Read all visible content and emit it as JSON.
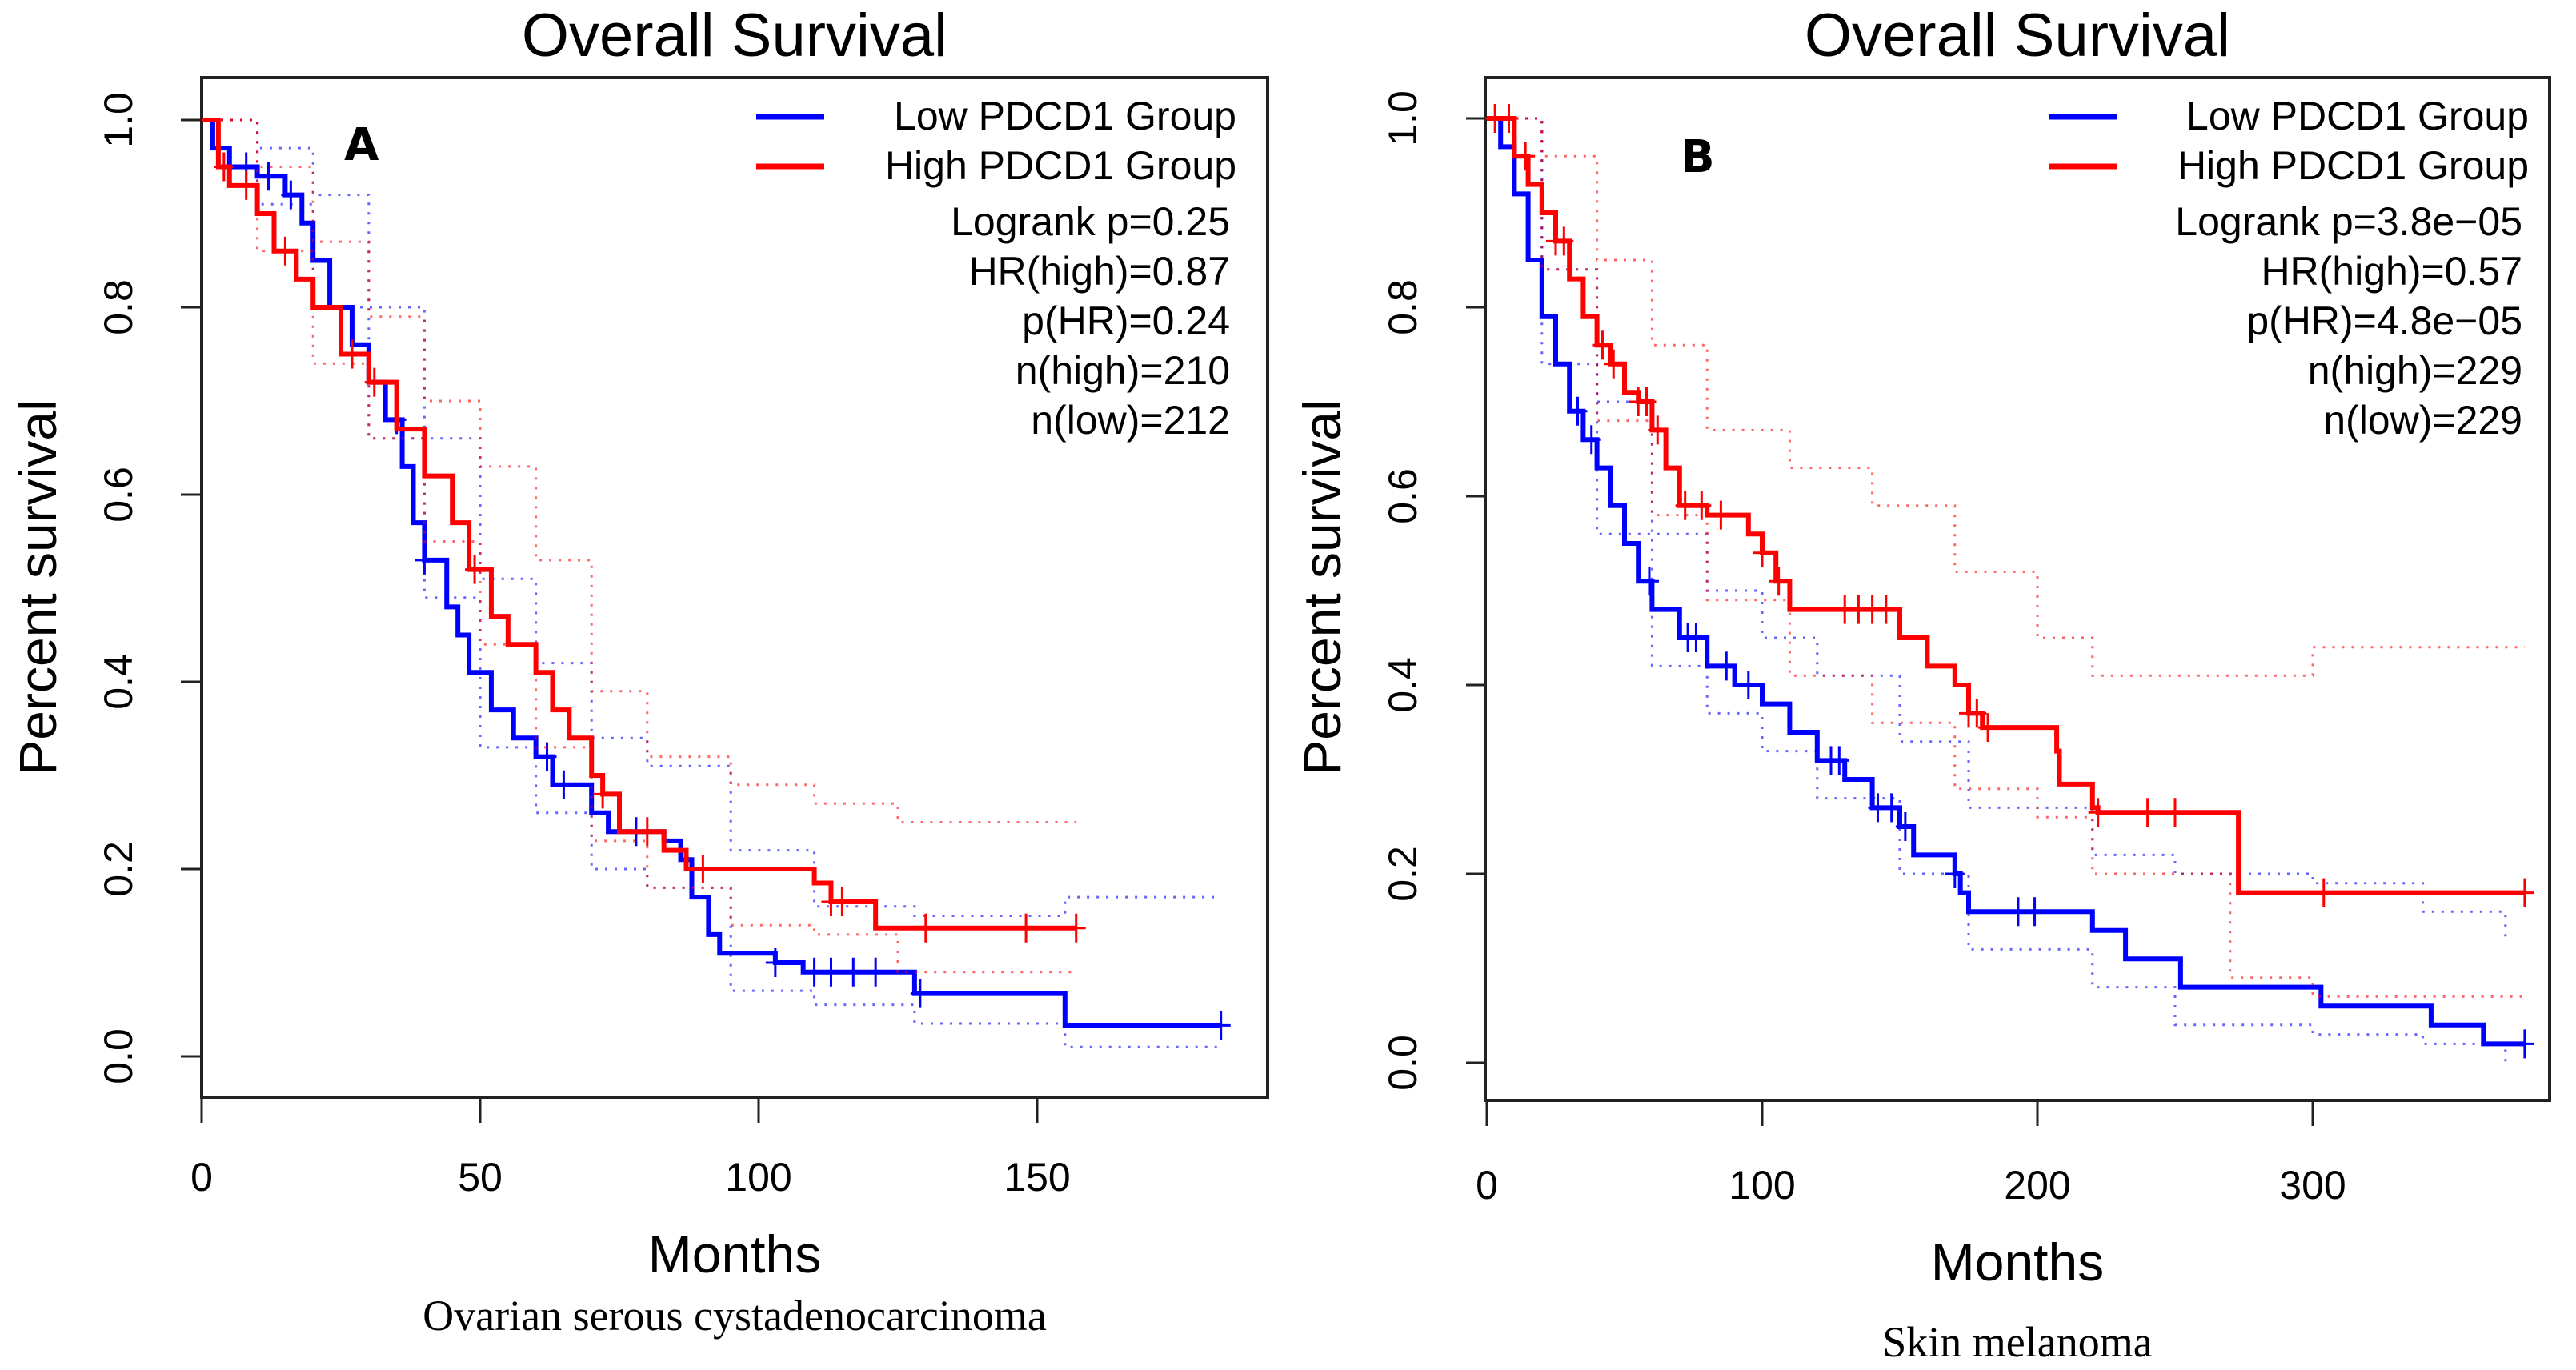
{
  "chart_data": [
    {
      "type": "line",
      "panel_label": "A",
      "title": "Overall Survival",
      "xlabel": "Months",
      "ylabel": "Percent survival",
      "subtitle": "Ovarian serous cystadenocarcinoma",
      "xlim": [
        0,
        185
      ],
      "ylim": [
        0,
        1.0
      ],
      "xticks": [
        0,
        50,
        100,
        150
      ],
      "yticks": [
        0.0,
        0.2,
        0.4,
        0.6,
        0.8,
        1.0
      ],
      "ytick_labels": [
        "0.0",
        "0.2",
        "0.4",
        "0.6",
        "0.8",
        "1.0"
      ],
      "grid": false,
      "legend_position": "top-right",
      "legend": [
        {
          "label": "Low PDCD1 Group",
          "color": "#0000ff"
        },
        {
          "label": "High PDCD1 Group",
          "color": "#ff0000"
        }
      ],
      "stats": [
        "Logrank p=0.25",
        "HR(high)=0.87",
        "p(HR)=0.24",
        "n(high)=210",
        "n(low)=212"
      ],
      "series": [
        {
          "name": "Low PDCD1 Group",
          "color": "#0000ff",
          "x": [
            0,
            2,
            5,
            10,
            15,
            18,
            20,
            23,
            27,
            30,
            33,
            36,
            38,
            40,
            44,
            46,
            48,
            52,
            56,
            60,
            63,
            70,
            73,
            83,
            86,
            88,
            91,
            93,
            103,
            108,
            128,
            155,
            183
          ],
          "y": [
            1.0,
            0.97,
            0.95,
            0.94,
            0.92,
            0.89,
            0.85,
            0.8,
            0.76,
            0.72,
            0.68,
            0.63,
            0.57,
            0.53,
            0.48,
            0.45,
            0.41,
            0.37,
            0.34,
            0.32,
            0.29,
            0.26,
            0.24,
            0.23,
            0.21,
            0.17,
            0.13,
            0.11,
            0.1,
            0.09,
            0.067,
            0.033,
            0.033
          ],
          "censor_x": [
            5,
            8,
            12,
            16,
            35,
            40,
            62,
            65,
            78,
            103,
            110,
            113,
            117,
            121,
            129,
            183
          ],
          "ci_upper": {
            "x": [
              0,
              10,
              20,
              30,
              40,
              50,
              60,
              70,
              80,
              95,
              110,
              128,
              155,
              183
            ],
            "y": [
              1.0,
              0.97,
              0.92,
              0.8,
              0.66,
              0.51,
              0.42,
              0.34,
              0.31,
              0.22,
              0.16,
              0.15,
              0.17,
              0.17
            ]
          },
          "ci_lower": {
            "x": [
              0,
              10,
              20,
              30,
              40,
              50,
              60,
              70,
              80,
              95,
              110,
              128,
              155,
              183
            ],
            "y": [
              1.0,
              0.91,
              0.8,
              0.66,
              0.49,
              0.33,
              0.26,
              0.2,
              0.18,
              0.07,
              0.055,
              0.035,
              0.01,
              0.01
            ]
          }
        },
        {
          "name": "High PDCD1 Group",
          "color": "#ff0000",
          "x": [
            0,
            3,
            5,
            10,
            13,
            17,
            20,
            25,
            30,
            35,
            40,
            45,
            48,
            52,
            55,
            60,
            63,
            66,
            70,
            72,
            75,
            83,
            87,
            110,
            113,
            121,
            157
          ],
          "y": [
            1.0,
            0.95,
            0.93,
            0.9,
            0.86,
            0.83,
            0.8,
            0.75,
            0.72,
            0.67,
            0.62,
            0.57,
            0.52,
            0.47,
            0.44,
            0.41,
            0.37,
            0.34,
            0.3,
            0.28,
            0.24,
            0.22,
            0.2,
            0.185,
            0.165,
            0.137,
            0.137
          ],
          "censor_x": [
            4,
            8,
            15,
            27,
            31,
            49,
            72,
            80,
            90,
            113,
            115,
            130,
            148,
            157
          ],
          "ci_upper": {
            "x": [
              0,
              10,
              20,
              30,
              40,
              50,
              60,
              70,
              80,
              95,
              110,
              125,
              157
            ],
            "y": [
              1.0,
              0.95,
              0.87,
              0.79,
              0.7,
              0.63,
              0.53,
              0.39,
              0.32,
              0.29,
              0.27,
              0.25,
              0.25
            ]
          },
          "ci_lower": {
            "x": [
              0,
              10,
              20,
              30,
              40,
              50,
              60,
              70,
              80,
              95,
              110,
              125,
              157
            ],
            "y": [
              1.0,
              0.86,
              0.74,
              0.66,
              0.55,
              0.44,
              0.33,
              0.23,
              0.18,
              0.14,
              0.13,
              0.09,
              0.09
            ]
          }
        }
      ]
    },
    {
      "type": "line",
      "panel_label": "B",
      "title": "Overall Survival",
      "xlabel": "Months",
      "ylabel": "Percent survival",
      "subtitle": "Skin melanoma",
      "xlim": [
        0,
        385
      ],
      "ylim": [
        0,
        1.0
      ],
      "xticks": [
        0,
        100,
        200,
        300
      ],
      "yticks": [
        0.0,
        0.2,
        0.4,
        0.6,
        0.8,
        1.0
      ],
      "ytick_labels": [
        "0.0",
        "0.2",
        "0.4",
        "0.6",
        "0.8",
        "1.0"
      ],
      "grid": false,
      "legend_position": "top-right",
      "legend": [
        {
          "label": "Low PDCD1 Group",
          "color": "#0000ff"
        },
        {
          "label": "High PDCD1 Group",
          "color": "#ff0000"
        }
      ],
      "stats": [
        "Logrank p=3.8e−05",
        "HR(high)=0.57",
        "p(HR)=4.8e−05",
        "n(high)=229",
        "n(low)=229"
      ],
      "series": [
        {
          "name": "Low PDCD1 Group",
          "color": "#0000ff",
          "x": [
            0,
            5,
            10,
            15,
            20,
            25,
            30,
            35,
            40,
            45,
            50,
            55,
            60,
            70,
            80,
            90,
            100,
            110,
            120,
            130,
            140,
            150,
            155,
            170,
            172,
            175,
            220,
            232,
            252,
            303,
            343,
            362,
            377
          ],
          "y": [
            1.0,
            0.97,
            0.92,
            0.85,
            0.79,
            0.74,
            0.69,
            0.66,
            0.63,
            0.59,
            0.55,
            0.51,
            0.48,
            0.45,
            0.42,
            0.4,
            0.38,
            0.35,
            0.32,
            0.3,
            0.27,
            0.25,
            0.22,
            0.2,
            0.18,
            0.16,
            0.14,
            0.11,
            0.08,
            0.06,
            0.04,
            0.02,
            0.02
          ],
          "censor_x": [
            3,
            33,
            38,
            59,
            73,
            76,
            87,
            95,
            125,
            128,
            142,
            147,
            152,
            170,
            193,
            199,
            377
          ],
          "ci_upper": {
            "x": [
              0,
              20,
              40,
              60,
              80,
              100,
              120,
              150,
              175,
              220,
              250,
              300,
              340,
              370
            ],
            "y": [
              1.0,
              0.84,
              0.7,
              0.56,
              0.5,
              0.45,
              0.41,
              0.34,
              0.27,
              0.22,
              0.2,
              0.19,
              0.16,
              0.13
            ]
          },
          "ci_lower": {
            "x": [
              0,
              20,
              40,
              60,
              80,
              100,
              120,
              150,
              175,
              220,
              250,
              300,
              340,
              370
            ],
            "y": [
              1.0,
              0.74,
              0.56,
              0.42,
              0.37,
              0.33,
              0.28,
              0.2,
              0.12,
              0.08,
              0.04,
              0.03,
              0.02,
              0.0
            ]
          }
        },
        {
          "name": "High PDCD1 Group",
          "color": "#ff0000",
          "x": [
            0,
            10,
            15,
            20,
            25,
            30,
            35,
            40,
            45,
            50,
            55,
            60,
            65,
            70,
            80,
            95,
            100,
            105,
            110,
            150,
            160,
            170,
            175,
            180,
            207,
            208,
            220,
            222,
            273,
            377
          ],
          "y": [
            1.0,
            0.96,
            0.93,
            0.9,
            0.87,
            0.83,
            0.79,
            0.76,
            0.74,
            0.71,
            0.7,
            0.67,
            0.63,
            0.59,
            0.58,
            0.56,
            0.54,
            0.51,
            0.48,
            0.45,
            0.42,
            0.4,
            0.37,
            0.355,
            0.33,
            0.295,
            0.27,
            0.265,
            0.18,
            0.18
          ],
          "censor_x": [
            3,
            8,
            14,
            25,
            28,
            42,
            46,
            55,
            58,
            62,
            72,
            78,
            85,
            100,
            106,
            130,
            135,
            140,
            145,
            175,
            178,
            182,
            222,
            240,
            250,
            304,
            377
          ],
          "ci_upper": {
            "x": [
              0,
              20,
              40,
              60,
              80,
              110,
              140,
              170,
              200,
              220,
              270,
              300,
              377
            ],
            "y": [
              1.0,
              0.96,
              0.85,
              0.76,
              0.67,
              0.63,
              0.59,
              0.52,
              0.45,
              0.41,
              0.41,
              0.44,
              0.44
            ]
          },
          "ci_lower": {
            "x": [
              0,
              20,
              40,
              60,
              80,
              110,
              140,
              170,
              200,
              220,
              270,
              300,
              377
            ],
            "y": [
              1.0,
              0.84,
              0.68,
              0.58,
              0.49,
              0.41,
              0.36,
              0.29,
              0.26,
              0.2,
              0.09,
              0.07,
              0.07
            ]
          }
        }
      ]
    }
  ]
}
